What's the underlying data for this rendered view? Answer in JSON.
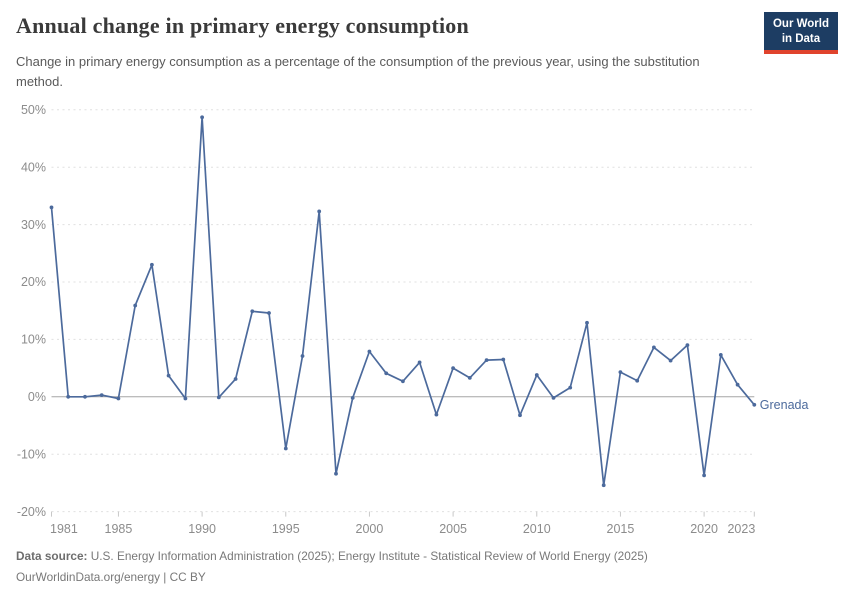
{
  "header": {
    "title": "Annual change in primary energy consumption",
    "subtitle": "Change in primary energy consumption as a percentage of the consumption of the previous year, using the substitution method.",
    "logo": {
      "line1": "Our World",
      "line2": "in Data"
    }
  },
  "chart_data": {
    "type": "line",
    "title": "Annual change in primary energy consumption",
    "entity": "Grenada",
    "unit": "%",
    "years": [
      1981,
      1982,
      1983,
      1984,
      1985,
      1986,
      1987,
      1988,
      1989,
      1990,
      1991,
      1992,
      1993,
      1994,
      1995,
      1996,
      1997,
      1998,
      1999,
      2000,
      2001,
      2002,
      2003,
      2004,
      2005,
      2006,
      2007,
      2008,
      2009,
      2010,
      2011,
      2012,
      2013,
      2014,
      2015,
      2016,
      2017,
      2018,
      2019,
      2020,
      2021,
      2022,
      2023
    ],
    "values": [
      33,
      0,
      0,
      0.3,
      -0.3,
      15.9,
      23,
      3.7,
      -0.3,
      48.7,
      -0.1,
      3.1,
      14.9,
      14.6,
      -9,
      7.1,
      32.3,
      -13.4,
      -0.2,
      7.9,
      4.1,
      2.7,
      6,
      -3.1,
      5,
      3.3,
      6.4,
      6.5,
      -3.2,
      3.8,
      -0.2,
      1.6,
      12.9,
      -15.4,
      4.3,
      2.8,
      8.6,
      6.3,
      9,
      -13.7,
      7.3,
      2.1,
      -1.4
    ],
    "xlim": [
      1981,
      2023
    ],
    "ylim": [
      -20,
      50
    ],
    "yticks": [
      50,
      40,
      30,
      20,
      10,
      0,
      -10,
      -20
    ],
    "ytick_suffix": "%",
    "xticks": [
      1981,
      1985,
      1990,
      1995,
      2000,
      2005,
      2010,
      2015,
      2020,
      2023
    ],
    "grid": "horizontal-dashed",
    "legend_position": "end-of-line-label",
    "line_color": "#4c6a9c"
  },
  "colors": {
    "line": "#4c6a9c",
    "logo_bg": "#1d3d63",
    "logo_accent": "#e0432d",
    "grid": "#e0e0e0",
    "zero_line": "#a6a6a6",
    "axis_text": "#8c8c8c",
    "tick_mark": "#c8c8c8"
  },
  "footer": {
    "source_label": "Data source:",
    "source_text": " U.S. Energy Information Administration (2025); Energy Institute - Statistical Review of World Energy (2025)",
    "license_line": "OurWorldinData.org/energy | CC BY"
  }
}
